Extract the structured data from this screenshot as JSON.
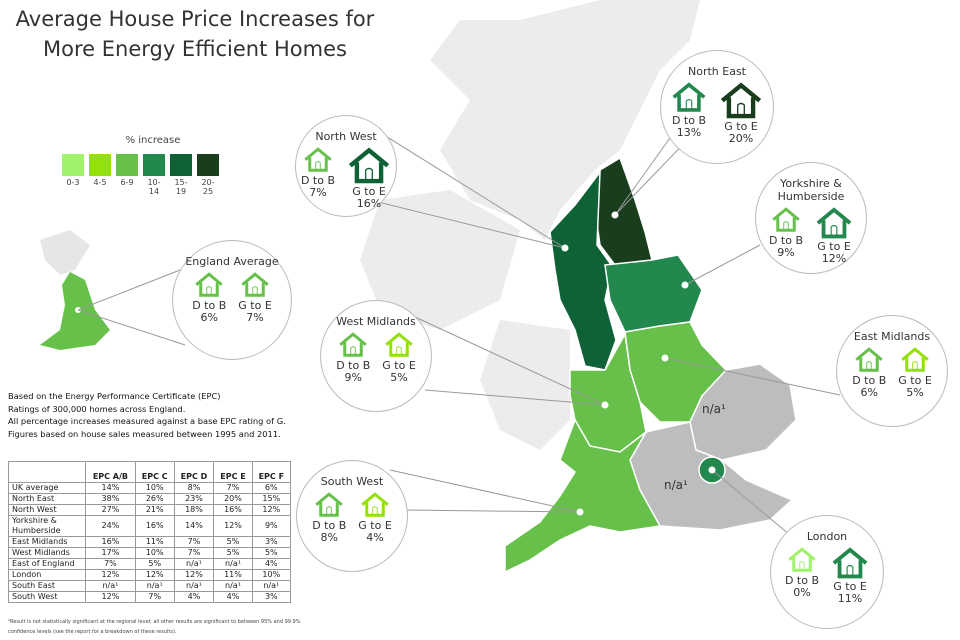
{
  "title": "Average House Price Increases for More Energy Efficient Homes",
  "legend": {
    "title": "% increase",
    "bins": [
      {
        "label": "0-3",
        "color": "#9ff26a"
      },
      {
        "label": "4-5",
        "color": "#94e00c"
      },
      {
        "label": "6-9",
        "color": "#66c04a"
      },
      {
        "label": "10-14",
        "color": "#22884e"
      },
      {
        "label": "15-19",
        "color": "#0e6236"
      },
      {
        "label": "20-25",
        "color": "#193d1d"
      }
    ]
  },
  "notes": [
    "Based on the Energy Performance Certificate (EPC)",
    "Ratings of 300,000 homes across England.",
    "All percentage increases measured against a base EPC rating of G.",
    "Figures based on house sales measured between 1995 and 2011."
  ],
  "table": {
    "headers": [
      "",
      "EPC A/B",
      "EPC C",
      "EPC D",
      "EPC E",
      "EPC F"
    ],
    "rows": [
      [
        "UK average",
        "14%",
        "10%",
        "8%",
        "7%",
        "6%"
      ],
      [
        "North East",
        "38%",
        "26%",
        "23%",
        "20%",
        "15%"
      ],
      [
        "North West",
        "27%",
        "21%",
        "18%",
        "16%",
        "12%"
      ],
      [
        "Yorkshire & Humberside",
        "24%",
        "16%",
        "14%",
        "12%",
        "9%"
      ],
      [
        "East Midlands",
        "16%",
        "11%",
        "7%",
        "5%",
        "3%"
      ],
      [
        "West Midlands",
        "17%",
        "10%",
        "7%",
        "5%",
        "5%"
      ],
      [
        "East of England",
        "7%",
        "5%",
        "n/a¹",
        "n/a¹",
        "4%"
      ],
      [
        "London",
        "12%",
        "12%",
        "12%",
        "11%",
        "10%"
      ],
      [
        "South East",
        "n/a¹",
        "n/a¹",
        "n/a¹",
        "n/a¹",
        "n/a¹"
      ],
      [
        "South West",
        "12%",
        "7%",
        "4%",
        "4%",
        "3%"
      ]
    ]
  },
  "footnote": "¹Result is not statistically significant at the regional level; all other results are significant to between 95% and 99.9% confidence levels (see the report for a breakdown of these results).",
  "map_labels": {
    "east_of_england": "n/a¹",
    "south_east": "n/a¹"
  },
  "callouts": [
    {
      "id": "north-west",
      "name": "North West",
      "d_label": "D to B",
      "d_value": "7%",
      "d_color": "#66c04a",
      "g_label": "G to E",
      "g_value": "16%",
      "g_color": "#0e6236"
    },
    {
      "id": "north-east",
      "name": "North East",
      "d_label": "D to B",
      "d_value": "13%",
      "d_color": "#22884e",
      "g_label": "G to E",
      "g_value": "20%",
      "g_color": "#193d1d"
    },
    {
      "id": "yorkshire",
      "name": "Yorkshire & Humberside",
      "d_label": "D to B",
      "d_value": "9%",
      "d_color": "#66c04a",
      "g_label": "G to E",
      "g_value": "12%",
      "g_color": "#22884e"
    },
    {
      "id": "england",
      "name": "England Average",
      "d_label": "D to B",
      "d_value": "6%",
      "d_color": "#66c04a",
      "g_label": "G to E",
      "g_value": "7%",
      "g_color": "#66c04a"
    },
    {
      "id": "west-midlands",
      "name": "West Midlands",
      "d_label": "D to B",
      "d_value": "9%",
      "d_color": "#66c04a",
      "g_label": "G to E",
      "g_value": "5%",
      "g_color": "#94e00c"
    },
    {
      "id": "east-midlands",
      "name": "East Midlands",
      "d_label": "D to B",
      "d_value": "6%",
      "d_color": "#66c04a",
      "g_label": "G to E",
      "g_value": "5%",
      "g_color": "#94e00c"
    },
    {
      "id": "south-west",
      "name": "South West",
      "d_label": "D to B",
      "d_value": "8%",
      "d_color": "#66c04a",
      "g_label": "G to E",
      "g_value": "4%",
      "g_color": "#94e00c"
    },
    {
      "id": "london",
      "name": "London",
      "d_label": "D to B",
      "d_value": "0%",
      "d_color": "#9ff26a",
      "g_label": "G to E",
      "g_value": "11%",
      "g_color": "#22884e"
    }
  ]
}
